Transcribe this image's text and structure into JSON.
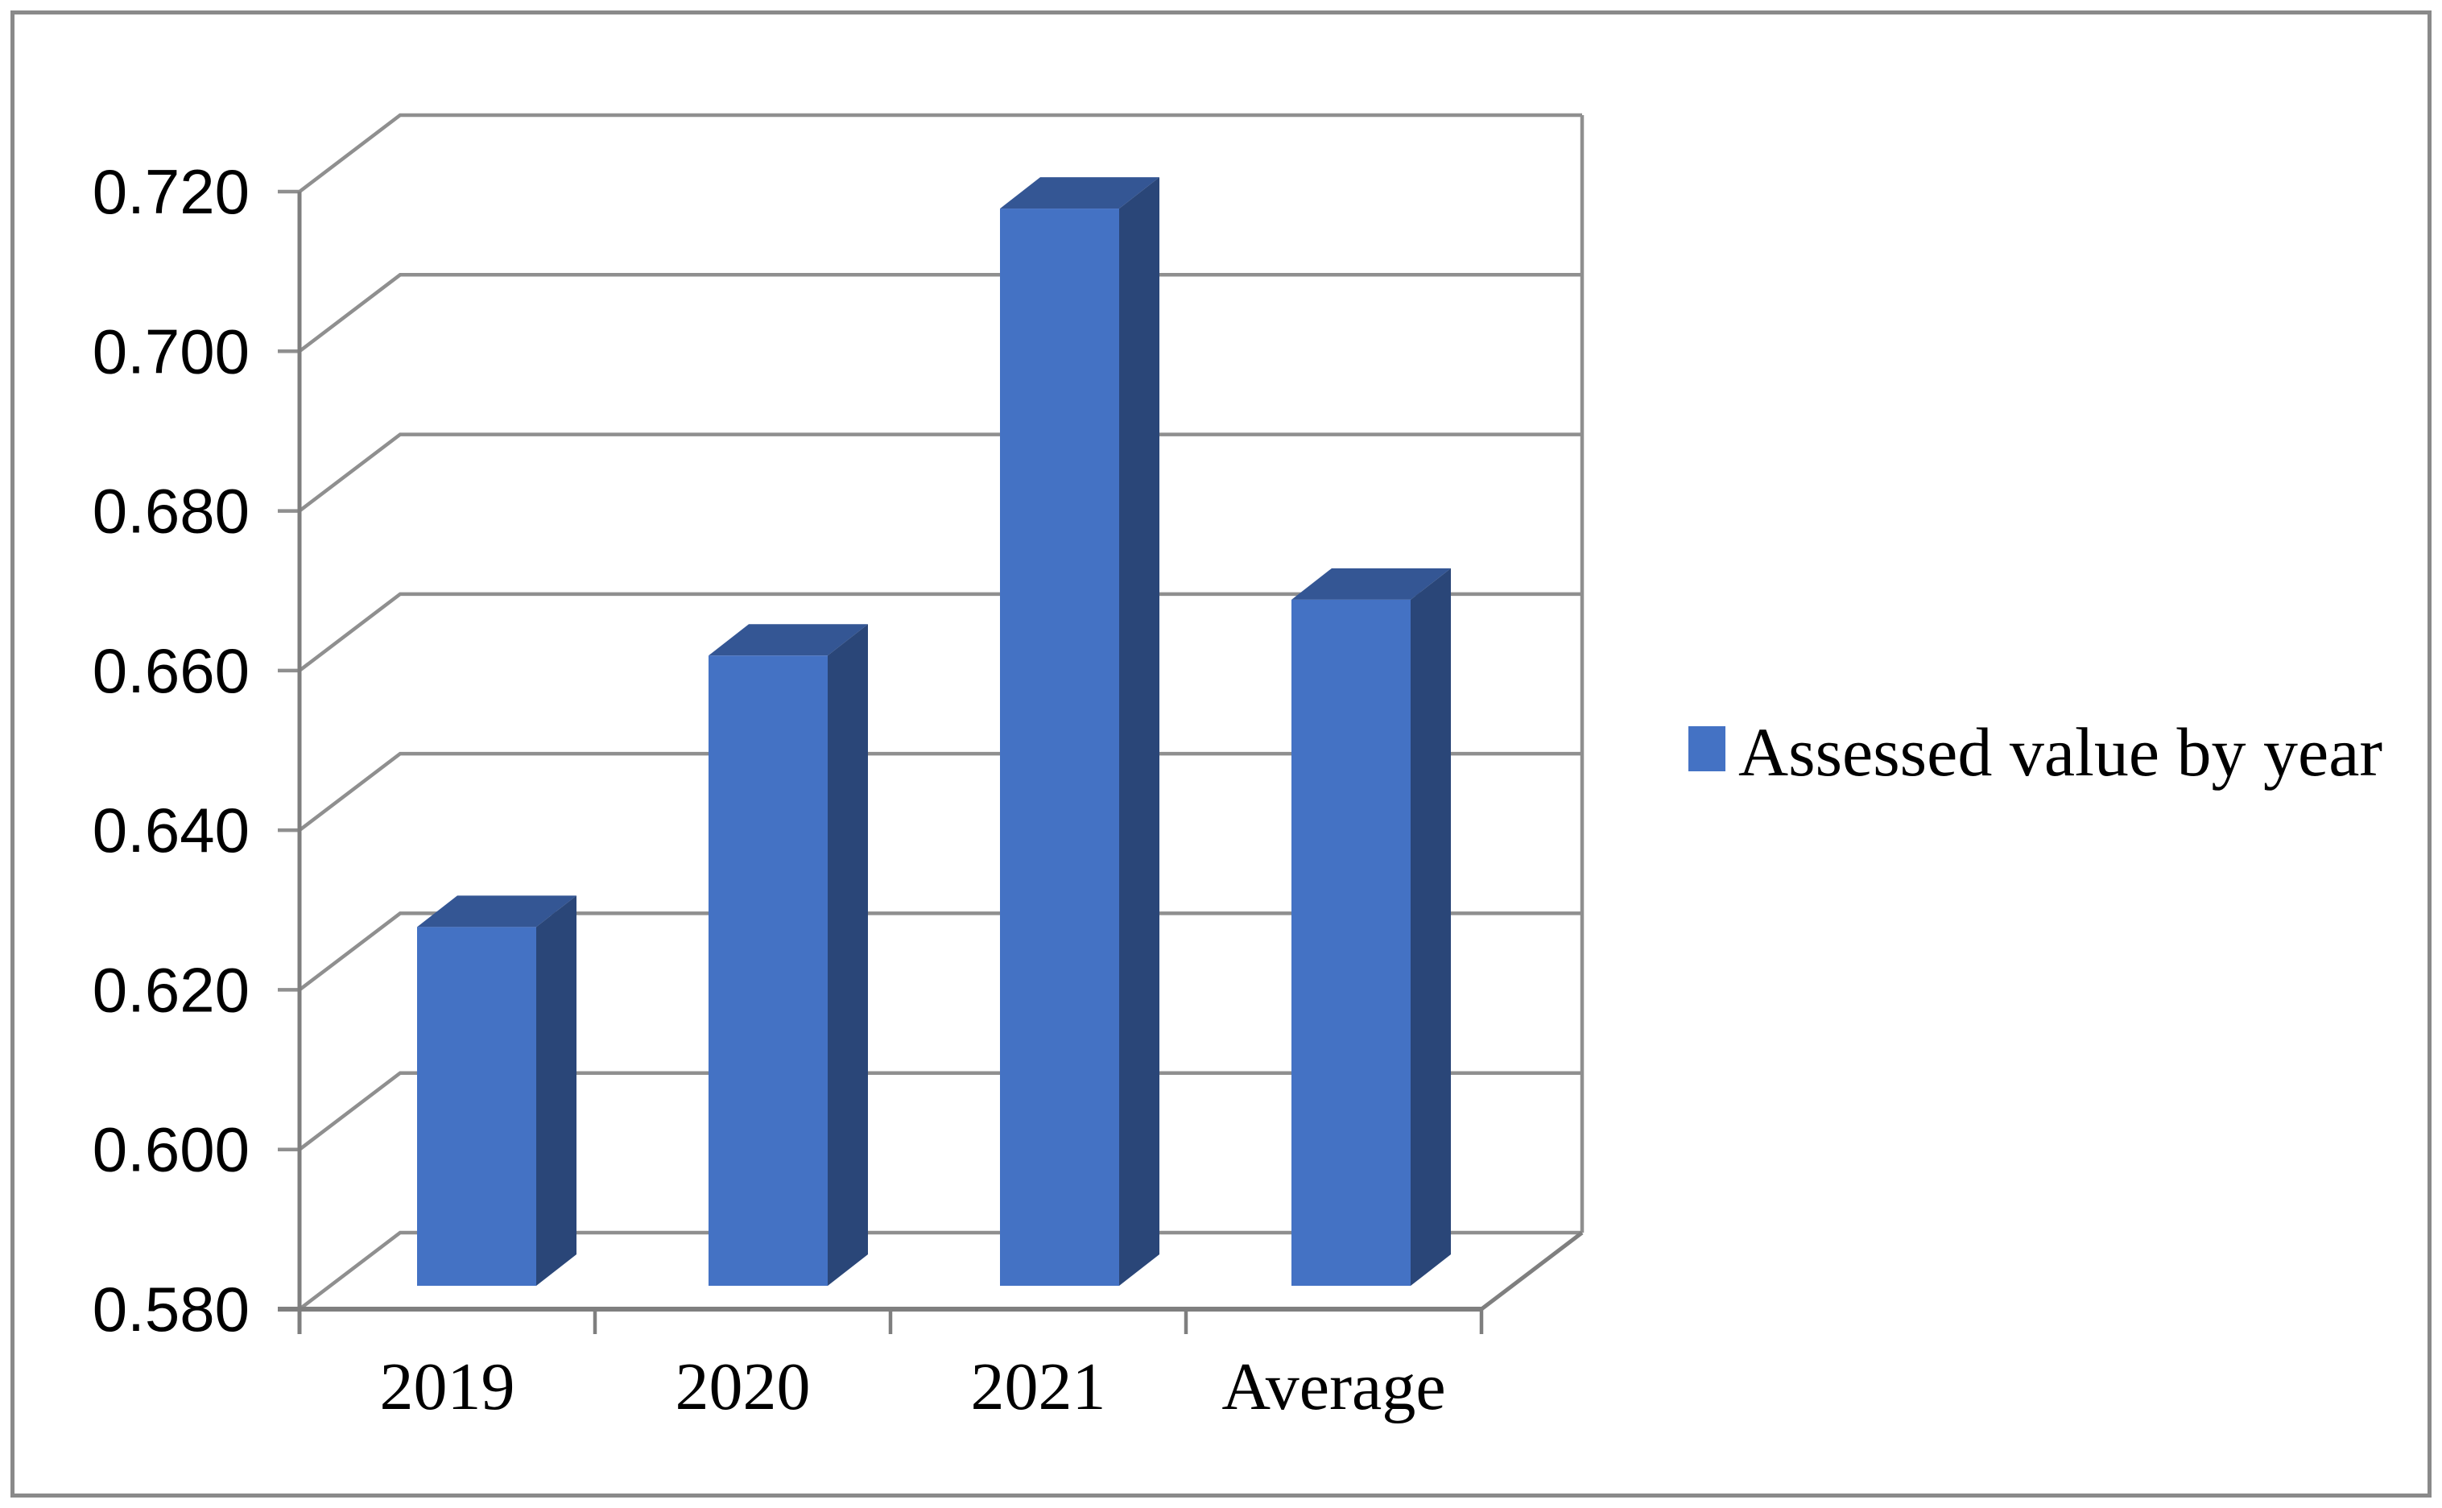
{
  "figure": {
    "background": "#FFFFFF",
    "frame_border_color": "#8A8A8A"
  },
  "chart_data": {
    "type": "bar",
    "style": "3d-column",
    "categories": [
      "2019",
      "2020",
      "2021",
      "Average"
    ],
    "series": [
      {
        "name": "Assessed value by year",
        "values": [
          0.625,
          0.659,
          0.715,
          0.666
        ]
      }
    ],
    "ylim": [
      0.58,
      0.72
    ],
    "ytick_step": 0.02,
    "ytick_labels": [
      "0.580",
      "0.600",
      "0.620",
      "0.640",
      "0.660",
      "0.680",
      "0.700",
      "0.720"
    ],
    "xtick_labels": [
      "2019",
      "2020",
      "2021",
      "Average"
    ],
    "grid": true,
    "legend_position": "right-middle",
    "colors": {
      "bar_front": "#4472C4",
      "bar_top": "#345694",
      "bar_side": "#2A4678",
      "gridline": "#8F8F8F",
      "axis": "#7F7F7F",
      "text": "#000000"
    }
  },
  "legend": {
    "label": "Assessed value by year",
    "marker_color": "#4472C4"
  }
}
